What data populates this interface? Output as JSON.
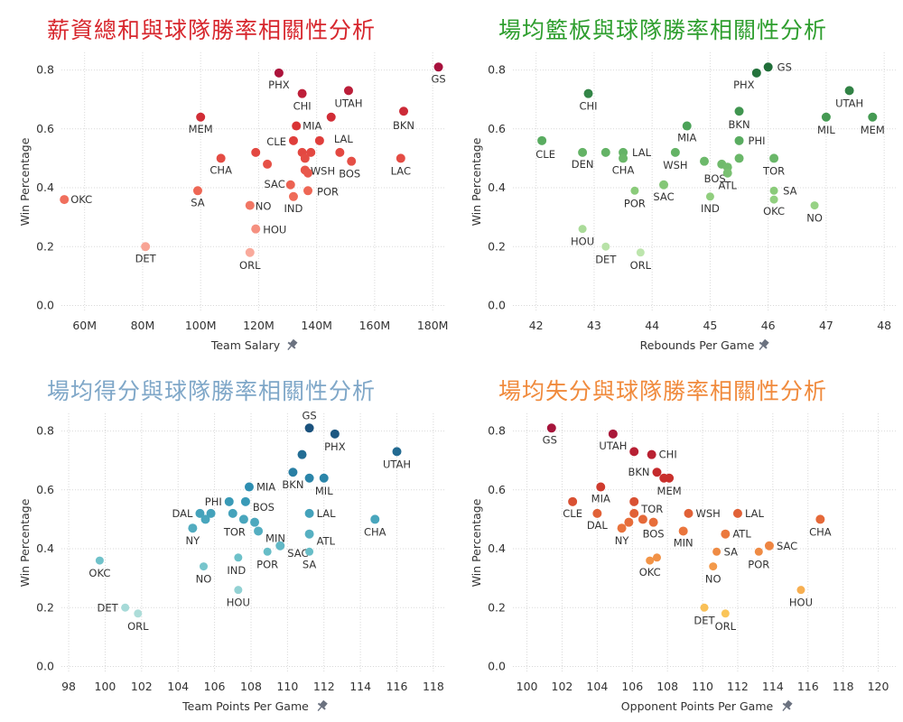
{
  "chart_data": [
    {
      "type": "scatter",
      "title": "薪資總和與球隊勝率相關性分析",
      "title_color": "#d7262d",
      "xlabel": "Team Salary",
      "ylabel": "Win Percentage",
      "xlim": [
        52,
        184
      ],
      "ylim": [
        -0.02,
        0.86
      ],
      "x_ticks": [
        60,
        80,
        100,
        120,
        140,
        160,
        180
      ],
      "x_tick_labels": [
        "60M",
        "80M",
        "100M",
        "120M",
        "140M",
        "160M",
        "180M"
      ],
      "y_ticks": [
        0,
        0.2,
        0.4,
        0.6,
        0.8
      ],
      "y_tick_labels": [
        "0.0",
        "0.2",
        "0.4",
        "0.6",
        "0.8"
      ],
      "palette": [
        "#fbb4a6",
        "#ef6b58",
        "#dc3535",
        "#a50e3c"
      ],
      "pin_icon": "pin-icon",
      "points": [
        {
          "x": 182,
          "y": 0.81,
          "label": "GS"
        },
        {
          "x": 127,
          "y": 0.79,
          "label": "PHX"
        },
        {
          "x": 135,
          "y": 0.72,
          "label": "CHI"
        },
        {
          "x": 151,
          "y": 0.73,
          "label": "UTAH"
        },
        {
          "x": 170,
          "y": 0.66,
          "label": "BKN"
        },
        {
          "x": 145,
          "y": 0.64,
          "label": ""
        },
        {
          "x": 100,
          "y": 0.64,
          "label": "MEM"
        },
        {
          "x": 133,
          "y": 0.61,
          "label": "MIA"
        },
        {
          "x": 132,
          "y": 0.56,
          "label": "CLE"
        },
        {
          "x": 141,
          "y": 0.56,
          "label": "LAL"
        },
        {
          "x": 119,
          "y": 0.52,
          "label": ""
        },
        {
          "x": 135,
          "y": 0.52,
          "label": ""
        },
        {
          "x": 138,
          "y": 0.52,
          "label": ""
        },
        {
          "x": 148,
          "y": 0.52,
          "label": ""
        },
        {
          "x": 136,
          "y": 0.5,
          "label": ""
        },
        {
          "x": 107,
          "y": 0.5,
          "label": "CHA"
        },
        {
          "x": 169,
          "y": 0.5,
          "label": "LAC"
        },
        {
          "x": 152,
          "y": 0.49,
          "label": "BOS"
        },
        {
          "x": 123,
          "y": 0.48,
          "label": ""
        },
        {
          "x": 136,
          "y": 0.46,
          "label": "WSH"
        },
        {
          "x": 137,
          "y": 0.45,
          "label": ""
        },
        {
          "x": 131,
          "y": 0.41,
          "label": "SAC"
        },
        {
          "x": 137,
          "y": 0.39,
          "label": "POR"
        },
        {
          "x": 99,
          "y": 0.39,
          "label": "SA"
        },
        {
          "x": 132,
          "y": 0.37,
          "label": "IND"
        },
        {
          "x": 53,
          "y": 0.36,
          "label": "OKC"
        },
        {
          "x": 117,
          "y": 0.34,
          "label": "NO"
        },
        {
          "x": 119,
          "y": 0.26,
          "label": "HOU"
        },
        {
          "x": 81,
          "y": 0.2,
          "label": "DET"
        },
        {
          "x": 117,
          "y": 0.18,
          "label": "ORL"
        }
      ]
    },
    {
      "type": "scatter",
      "title": "場均籃板與球隊勝率相關性分析",
      "title_color": "#2e9e2e",
      "xlabel": "Rebounds Per Game",
      "ylabel": "Win Percentage",
      "xlim": [
        41.6,
        48.2
      ],
      "ylim": [
        -0.02,
        0.86
      ],
      "x_ticks": [
        42,
        43,
        44,
        45,
        46,
        47,
        48
      ],
      "x_tick_labels": [
        "42",
        "43",
        "44",
        "45",
        "46",
        "47",
        "48"
      ],
      "y_ticks": [
        0,
        0.2,
        0.4,
        0.6,
        0.8
      ],
      "y_tick_labels": [
        "0.0",
        "0.2",
        "0.4",
        "0.6",
        "0.8"
      ],
      "palette": [
        "#c4e8b4",
        "#8fce7d",
        "#4ea55a",
        "#1e6b37"
      ],
      "pin_icon": "pin-icon",
      "points": [
        {
          "x": 46,
          "y": 0.81,
          "label": "GS"
        },
        {
          "x": 45.8,
          "y": 0.79,
          "label": "PHX"
        },
        {
          "x": 47.4,
          "y": 0.73,
          "label": "UTAH"
        },
        {
          "x": 42.9,
          "y": 0.72,
          "label": "CHI"
        },
        {
          "x": 45.5,
          "y": 0.66,
          "label": "BKN"
        },
        {
          "x": 47,
          "y": 0.64,
          "label": "MIL"
        },
        {
          "x": 47.8,
          "y": 0.64,
          "label": "MEM"
        },
        {
          "x": 44.6,
          "y": 0.61,
          "label": "MIA"
        },
        {
          "x": 45.5,
          "y": 0.56,
          "label": "PHI"
        },
        {
          "x": 42.1,
          "y": 0.56,
          "label": "CLE"
        },
        {
          "x": 42.8,
          "y": 0.52,
          "label": "DEN"
        },
        {
          "x": 43.2,
          "y": 0.52,
          "label": ""
        },
        {
          "x": 43.5,
          "y": 0.52,
          "label": "LAL"
        },
        {
          "x": 43.5,
          "y": 0.5,
          "label": "CHA"
        },
        {
          "x": 44.4,
          "y": 0.52,
          "label": "WSH"
        },
        {
          "x": 44.9,
          "y": 0.49,
          "label": ""
        },
        {
          "x": 45.5,
          "y": 0.5,
          "label": ""
        },
        {
          "x": 46.1,
          "y": 0.5,
          "label": "TOR"
        },
        {
          "x": 45.2,
          "y": 0.48,
          "label": ""
        },
        {
          "x": 45.3,
          "y": 0.47,
          "label": "BOS"
        },
        {
          "x": 45.3,
          "y": 0.45,
          "label": "ATL"
        },
        {
          "x": 44.2,
          "y": 0.41,
          "label": "SAC"
        },
        {
          "x": 43.7,
          "y": 0.39,
          "label": "POR"
        },
        {
          "x": 46.1,
          "y": 0.39,
          "label": "SA"
        },
        {
          "x": 45,
          "y": 0.37,
          "label": "IND"
        },
        {
          "x": 46.1,
          "y": 0.36,
          "label": "OKC"
        },
        {
          "x": 46.8,
          "y": 0.34,
          "label": "NO"
        },
        {
          "x": 42.8,
          "y": 0.26,
          "label": "HOU"
        },
        {
          "x": 43.2,
          "y": 0.2,
          "label": "DET"
        },
        {
          "x": 43.8,
          "y": 0.18,
          "label": "ORL"
        }
      ]
    },
    {
      "type": "scatter",
      "title": "場均得分與球隊勝率相關性分析",
      "title_color": "#7fa7c8",
      "xlabel": "Team Points Per Game",
      "ylabel": "Win Percentage",
      "xlim": [
        97.6,
        118.6
      ],
      "ylim": [
        -0.02,
        0.86
      ],
      "x_ticks": [
        98,
        100,
        102,
        104,
        106,
        108,
        110,
        112,
        114,
        116,
        118
      ],
      "x_tick_labels": [
        "98",
        "100",
        "102",
        "104",
        "106",
        "108",
        "110",
        "112",
        "114",
        "116",
        "118"
      ],
      "y_ticks": [
        0,
        0.2,
        0.4,
        0.6,
        0.8
      ],
      "y_tick_labels": [
        "0.0",
        "0.2",
        "0.4",
        "0.6",
        "0.8"
      ],
      "palette": [
        "#b7e2dc",
        "#6cc0c9",
        "#2f92b4",
        "#1a4f7a"
      ],
      "pin_icon": "pin-icon",
      "points": [
        {
          "x": 111.2,
          "y": 0.81,
          "label": "GS"
        },
        {
          "x": 112.6,
          "y": 0.79,
          "label": "PHX"
        },
        {
          "x": 116,
          "y": 0.73,
          "label": "UTAH"
        },
        {
          "x": 110.8,
          "y": 0.72,
          "label": ""
        },
        {
          "x": 110.3,
          "y": 0.66,
          "label": "BKN"
        },
        {
          "x": 111.2,
          "y": 0.64,
          "label": ""
        },
        {
          "x": 112,
          "y": 0.64,
          "label": "MIL"
        },
        {
          "x": 107.9,
          "y": 0.61,
          "label": "MIA"
        },
        {
          "x": 106.8,
          "y": 0.56,
          "label": "PHI"
        },
        {
          "x": 107.7,
          "y": 0.56,
          "label": "BOS"
        },
        {
          "x": 105.2,
          "y": 0.52,
          "label": "DAL"
        },
        {
          "x": 105.8,
          "y": 0.52,
          "label": ""
        },
        {
          "x": 105.5,
          "y": 0.5,
          "label": ""
        },
        {
          "x": 107,
          "y": 0.52,
          "label": ""
        },
        {
          "x": 111.2,
          "y": 0.52,
          "label": "LAL"
        },
        {
          "x": 114.8,
          "y": 0.5,
          "label": "CHA"
        },
        {
          "x": 107.6,
          "y": 0.5,
          "label": "TOR"
        },
        {
          "x": 108.2,
          "y": 0.49,
          "label": ""
        },
        {
          "x": 104.8,
          "y": 0.47,
          "label": "NY"
        },
        {
          "x": 108.4,
          "y": 0.46,
          "label": "MIN"
        },
        {
          "x": 111.2,
          "y": 0.45,
          "label": "ATL"
        },
        {
          "x": 109.6,
          "y": 0.41,
          "label": "SAC"
        },
        {
          "x": 108.9,
          "y": 0.39,
          "label": "POR"
        },
        {
          "x": 111.2,
          "y": 0.39,
          "label": "SA"
        },
        {
          "x": 107.3,
          "y": 0.37,
          "label": "IND"
        },
        {
          "x": 99.7,
          "y": 0.36,
          "label": "OKC"
        },
        {
          "x": 105.4,
          "y": 0.34,
          "label": "NO"
        },
        {
          "x": 107.3,
          "y": 0.26,
          "label": "HOU"
        },
        {
          "x": 101.1,
          "y": 0.2,
          "label": "DET"
        },
        {
          "x": 101.8,
          "y": 0.18,
          "label": "ORL"
        }
      ]
    },
    {
      "type": "scatter",
      "title": "場均失分與球隊勝率相關性分析",
      "title_color": "#f08a3c",
      "xlabel": "Opponent Points Per Game",
      "ylabel": "Win Percentage",
      "xlim": [
        99.2,
        121
      ],
      "ylim": [
        -0.02,
        0.86
      ],
      "x_ticks": [
        100,
        102,
        104,
        106,
        108,
        110,
        112,
        114,
        116,
        118,
        120
      ],
      "x_tick_labels": [
        "100",
        "102",
        "104",
        "106",
        "108",
        "110",
        "112",
        "114",
        "116",
        "118",
        "120"
      ],
      "y_ticks": [
        0,
        0.2,
        0.4,
        0.6,
        0.8
      ],
      "y_tick_labels": [
        "0.0",
        "0.2",
        "0.4",
        "0.6",
        "0.8"
      ],
      "palette": [
        "#fbcd5c",
        "#f5a04c",
        "#e86f3a",
        "#c72b2b",
        "#a4133c"
      ],
      "pin_icon": "pin-icon",
      "points": [
        {
          "x": 101.4,
          "y": 0.81,
          "label": "GS"
        },
        {
          "x": 104.9,
          "y": 0.79,
          "label": "UTAH"
        },
        {
          "x": 106.1,
          "y": 0.73,
          "label": ""
        },
        {
          "x": 107.1,
          "y": 0.72,
          "label": "CHI"
        },
        {
          "x": 107.4,
          "y": 0.66,
          "label": "BKN"
        },
        {
          "x": 107.8,
          "y": 0.64,
          "label": ""
        },
        {
          "x": 108.1,
          "y": 0.64,
          "label": "MEM"
        },
        {
          "x": 104.2,
          "y": 0.61,
          "label": "MIA"
        },
        {
          "x": 102.6,
          "y": 0.56,
          "label": "CLE"
        },
        {
          "x": 106.1,
          "y": 0.56,
          "label": "TOR"
        },
        {
          "x": 104,
          "y": 0.52,
          "label": "DAL"
        },
        {
          "x": 105.8,
          "y": 0.49,
          "label": ""
        },
        {
          "x": 106.1,
          "y": 0.52,
          "label": ""
        },
        {
          "x": 106.6,
          "y": 0.5,
          "label": ""
        },
        {
          "x": 107.2,
          "y": 0.49,
          "label": "BOS"
        },
        {
          "x": 109.2,
          "y": 0.52,
          "label": "WSH"
        },
        {
          "x": 112,
          "y": 0.52,
          "label": "LAL"
        },
        {
          "x": 116.7,
          "y": 0.5,
          "label": "CHA"
        },
        {
          "x": 105.4,
          "y": 0.47,
          "label": "NY"
        },
        {
          "x": 108.9,
          "y": 0.46,
          "label": "MIN"
        },
        {
          "x": 111.3,
          "y": 0.45,
          "label": "ATL"
        },
        {
          "x": 113.8,
          "y": 0.41,
          "label": "SAC"
        },
        {
          "x": 110.8,
          "y": 0.39,
          "label": "SA"
        },
        {
          "x": 113.2,
          "y": 0.39,
          "label": "POR"
        },
        {
          "x": 107.4,
          "y": 0.37,
          "label": ""
        },
        {
          "x": 107,
          "y": 0.36,
          "label": "OKC"
        },
        {
          "x": 110.6,
          "y": 0.34,
          "label": "NO"
        },
        {
          "x": 115.6,
          "y": 0.26,
          "label": "HOU"
        },
        {
          "x": 110.1,
          "y": 0.2,
          "label": "DET"
        },
        {
          "x": 111.3,
          "y": 0.18,
          "label": "ORL"
        }
      ]
    }
  ]
}
